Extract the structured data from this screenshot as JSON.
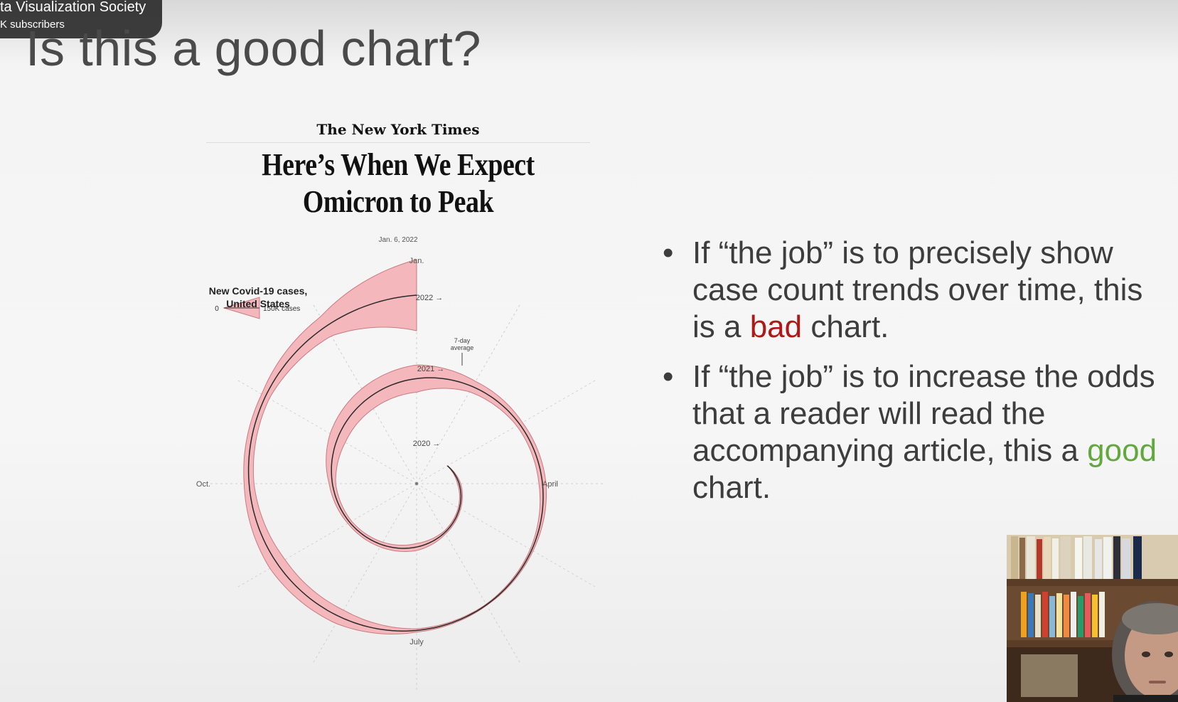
{
  "video": {
    "channel_name": "ta Visualization Society",
    "subscribers": "K subscribers"
  },
  "slide": {
    "title": "Is this a good chart?",
    "bullets": [
      {
        "before": "If “the job” is to precisely show case count trends over time, this is a ",
        "highlight": "bad",
        "after": " chart.",
        "highlight_color": "#b01818"
      },
      {
        "before": "If “the job” is to increase the odds that a reader will read the accompanying article, this a ",
        "highlight": "good",
        "after": " chart.",
        "highlight_color": "#62a83e"
      }
    ]
  },
  "figure": {
    "publication": "The New York Times",
    "headline": "Here’s When We Expect Omicron to Peak",
    "date": "Jan. 6, 2022"
  },
  "chart_data": {
    "type": "area",
    "title": "New Covid-19 cases, United States",
    "legend": {
      "zero_label": "0",
      "max_label": "150K cases"
    },
    "month_labels": [
      "Jan.",
      "April",
      "July",
      "Oct."
    ],
    "year_labels": [
      "2020",
      "2021",
      "2022"
    ],
    "annotation": "7-day average",
    "color": "#f4b8bc",
    "line_color": "#2a2a2a",
    "x": [
      "2020-03",
      "2020-04",
      "2020-05",
      "2020-06",
      "2020-07",
      "2020-08",
      "2020-09",
      "2020-10",
      "2020-11",
      "2020-12",
      "2021-01",
      "2021-02",
      "2021-03",
      "2021-04",
      "2021-05",
      "2021-06",
      "2021-07",
      "2021-08",
      "2021-09",
      "2021-10",
      "2021-11",
      "2021-12",
      "2022-01"
    ],
    "series": [
      {
        "values": [
          1,
          30,
          25,
          28,
          65,
          50,
          40,
          60,
          160,
          210,
          250,
          110,
          60,
          65,
          30,
          12,
          30,
          140,
          160,
          90,
          80,
          200,
          650
        ]
      }
    ]
  }
}
